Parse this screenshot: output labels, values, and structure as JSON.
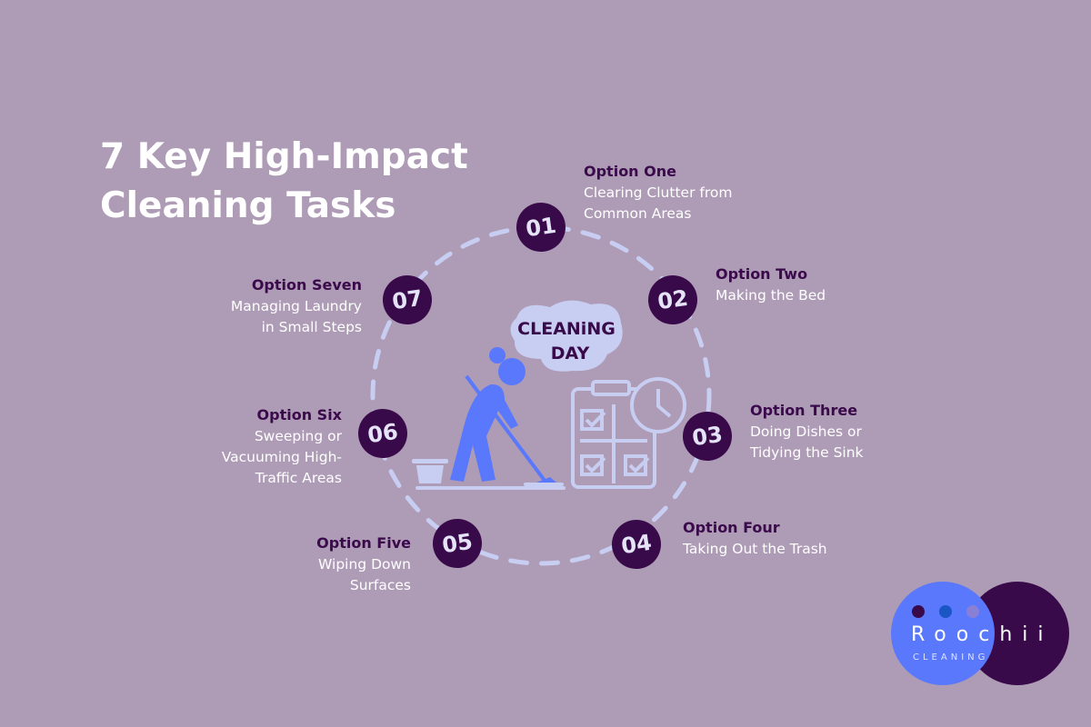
{
  "title": {
    "line1": "7 Key High-Impact",
    "line2": "Cleaning Tasks"
  },
  "illustration": {
    "bubble_line1": "CLEANiNG",
    "bubble_line2": "DAY"
  },
  "options": [
    {
      "number": "01",
      "label": "Option One",
      "desc": [
        "Clearing Clutter from",
        "Common Areas"
      ]
    },
    {
      "number": "02",
      "label": "Option Two",
      "desc": [
        "Making the Bed"
      ]
    },
    {
      "number": "03",
      "label": "Option Three",
      "desc": [
        "Doing Dishes or",
        "Tidying the Sink"
      ]
    },
    {
      "number": "04",
      "label": "Option Four",
      "desc": [
        "Taking Out the Trash"
      ]
    },
    {
      "number": "05",
      "label": "Option Five",
      "desc": [
        "Wiping Down",
        "Surfaces"
      ]
    },
    {
      "number": "06",
      "label": "Option Six",
      "desc": [
        "Sweeping or",
        "Vacuuming High-",
        "Traffic Areas"
      ]
    },
    {
      "number": "07",
      "label": "Option Seven",
      "desc": [
        "Managing Laundry",
        "in Small Steps"
      ]
    }
  ],
  "logo": {
    "name": "Roochii",
    "sub": "CLEANING"
  },
  "colors": {
    "background": "#ae9bb6",
    "dark_purple": "#380a4a",
    "lavender": "#c8cdf2",
    "blue": "#5a78fb",
    "white": "#ffffff"
  }
}
